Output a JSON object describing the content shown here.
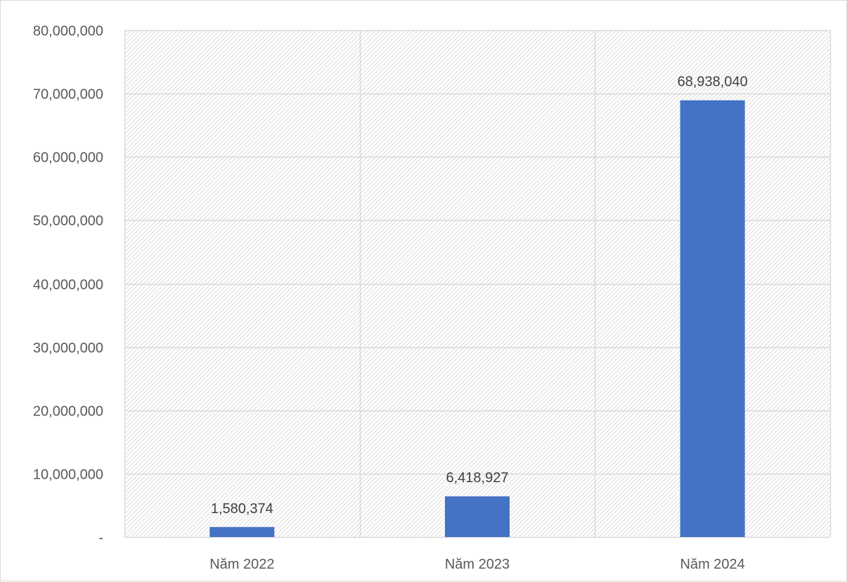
{
  "chart_data": {
    "type": "bar",
    "title": "",
    "xlabel": "",
    "ylabel": "",
    "categories": [
      "Năm 2022",
      "Năm 2023",
      "Năm 2024"
    ],
    "values": [
      1580374,
      6418927,
      68938040
    ],
    "data_labels": [
      "1,580,374",
      "6,418,927",
      "68,938,040"
    ],
    "ylim": [
      0,
      80000000
    ],
    "y_ticks": [
      0,
      10000000,
      20000000,
      30000000,
      40000000,
      50000000,
      60000000,
      70000000,
      80000000
    ],
    "y_tick_labels": [
      "-",
      "10,000,000",
      "20,000,000",
      "30,000,000",
      "40,000,000",
      "50,000,000",
      "60,000,000",
      "70,000,000",
      "80,000,000"
    ],
    "grid": true,
    "legend": "none",
    "plot_background": "diagonal-hatch",
    "colors": {
      "bar": "#4472c4",
      "grid": "#d9d9d9",
      "hatch": "#dcdcdc"
    }
  }
}
